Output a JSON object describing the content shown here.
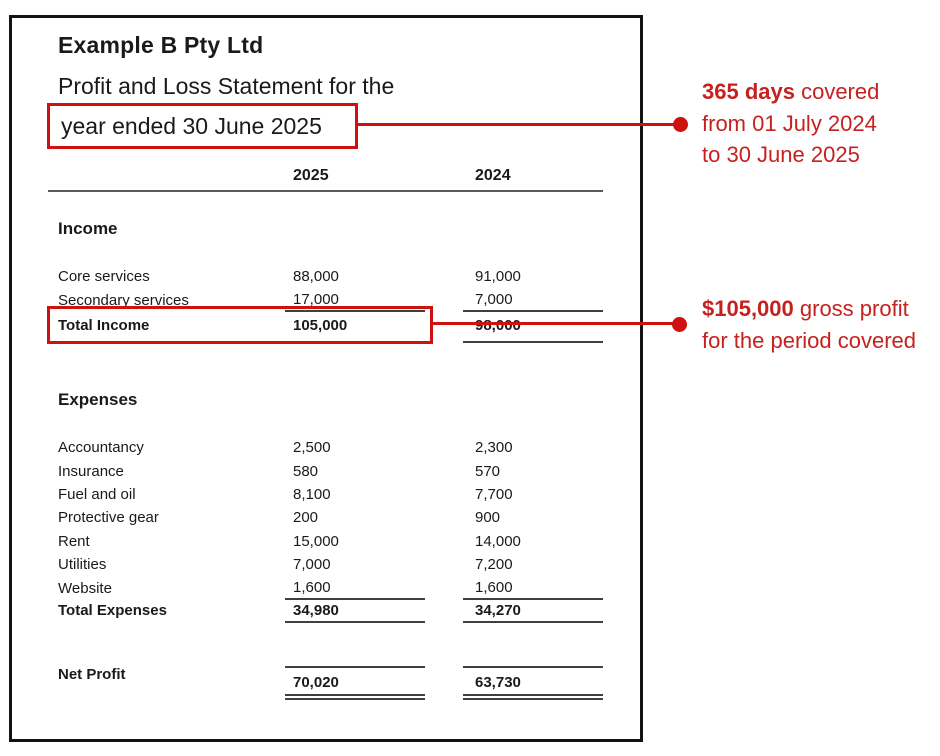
{
  "colors": {
    "accent_red_shapes": "#cf1110",
    "annotation_red_text": "#c5221f",
    "ink": "#1a1a1a",
    "rule_gray": "#5a5a5a"
  },
  "document": {
    "company": "Example B Pty Ltd",
    "statement_line1": "Profit and Loss Statement for the",
    "statement_line2": "year ended 30 June 2025",
    "col_headers": {
      "current": "2025",
      "prior": "2024"
    },
    "income": {
      "heading": "Income",
      "rows": [
        {
          "label": "Core services",
          "y2025": "88,000",
          "y2024": "91,000"
        },
        {
          "label": "Secondary services",
          "y2025": "17,000",
          "y2024": "7,000"
        }
      ],
      "total": {
        "label": "Total Income",
        "y2025": "105,000",
        "y2024": "98,000"
      }
    },
    "expenses": {
      "heading": "Expenses",
      "rows": [
        {
          "label": "Accountancy",
          "y2025": "2,500",
          "y2024": "2,300"
        },
        {
          "label": "Insurance",
          "y2025": "580",
          "y2024": "570"
        },
        {
          "label": "Fuel and oil",
          "y2025": "8,100",
          "y2024": "7,700"
        },
        {
          "label": "Protective gear",
          "y2025": "200",
          "y2024": "900"
        },
        {
          "label": "Rent",
          "y2025": "15,000",
          "y2024": "14,000"
        },
        {
          "label": "Utilities",
          "y2025": "7,000",
          "y2024": "7,200"
        },
        {
          "label": "Website",
          "y2025": "1,600",
          "y2024": "1,600"
        }
      ],
      "total": {
        "label": "Total Expenses",
        "y2025": "34,980",
        "y2024": "34,270"
      }
    },
    "net_profit": {
      "label": "Net Profit",
      "y2025": "70,020",
      "y2024": "63,730"
    }
  },
  "annotations": {
    "period": {
      "bold": "365 days",
      "rest": " covered",
      "line2": "from 01 July 2024",
      "line3": "to 30 June 2025"
    },
    "gross_profit": {
      "bold": "$105,000",
      "rest": " gross profit",
      "line2": "for the period covered"
    }
  }
}
